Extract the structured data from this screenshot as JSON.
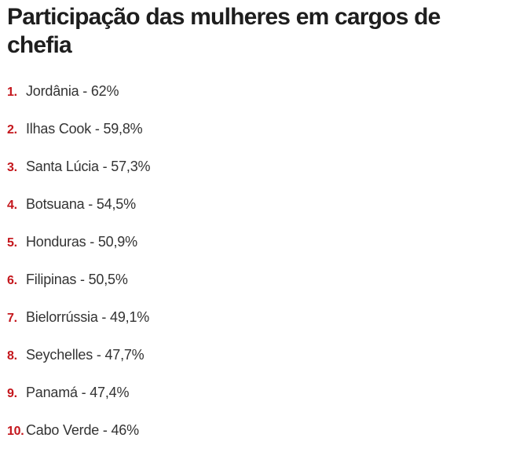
{
  "title": "Participação das mulheres em cargos de chefia",
  "accent_color": "#c4161c",
  "items": [
    {
      "rank": "1.",
      "text": "Jordânia - 62%"
    },
    {
      "rank": "2.",
      "text": "Ilhas Cook - 59,8%"
    },
    {
      "rank": "3.",
      "text": "Santa Lúcia - 57,3%"
    },
    {
      "rank": "4.",
      "text": "Botsuana - 54,5%"
    },
    {
      "rank": "5.",
      "text": "Honduras - 50,9%"
    },
    {
      "rank": "6.",
      "text": "Filipinas - 50,5%"
    },
    {
      "rank": "7.",
      "text": "Bielorrússia - 49,1%"
    },
    {
      "rank": "8.",
      "text": "Seychelles - 47,7%"
    },
    {
      "rank": "9.",
      "text": "Panamá - 47,4%"
    },
    {
      "rank": "10.",
      "text": "Cabo Verde - 46%"
    }
  ]
}
